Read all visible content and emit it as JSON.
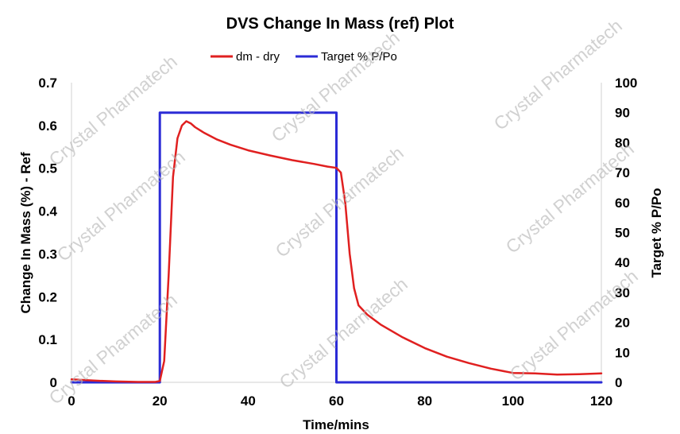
{
  "chart_data": {
    "type": "line",
    "title": "DVS Change In Mass (ref) Plot",
    "xlabel": "Time/mins",
    "ylabel_left": "Change In Mass (%) - Ref",
    "ylabel_right": "Target % P/Po",
    "xlim": [
      0,
      120
    ],
    "ylim_left": [
      0,
      0.7
    ],
    "ylim_right": [
      0,
      100
    ],
    "x_ticks": [
      "0",
      "20",
      "40",
      "60",
      "80",
      "100",
      "120"
    ],
    "y_left_ticks": [
      "0",
      "0.1",
      "0.2",
      "0.3",
      "0.4",
      "0.5",
      "0.6",
      "0.7"
    ],
    "y_right_ticks": [
      "0",
      "10",
      "20",
      "30",
      "40",
      "50",
      "60",
      "70",
      "80",
      "90",
      "100"
    ],
    "legend_position": "top",
    "watermark": "Crystal Pharmatech",
    "series": [
      {
        "name": "dm - dry",
        "color": "#e02020",
        "axis": "left",
        "points": [
          [
            0,
            0.007
          ],
          [
            5,
            0.004
          ],
          [
            10,
            0.002
          ],
          [
            15,
            0.001
          ],
          [
            19,
            0.001
          ],
          [
            20,
            0.003
          ],
          [
            21,
            0.05
          ],
          [
            22,
            0.25
          ],
          [
            23,
            0.48
          ],
          [
            24,
            0.57
          ],
          [
            25,
            0.6
          ],
          [
            26,
            0.61
          ],
          [
            27,
            0.605
          ],
          [
            28,
            0.596
          ],
          [
            30,
            0.583
          ],
          [
            33,
            0.567
          ],
          [
            36,
            0.555
          ],
          [
            40,
            0.542
          ],
          [
            45,
            0.53
          ],
          [
            50,
            0.519
          ],
          [
            55,
            0.51
          ],
          [
            58,
            0.504
          ],
          [
            60,
            0.501
          ],
          [
            61,
            0.49
          ],
          [
            62,
            0.42
          ],
          [
            63,
            0.3
          ],
          [
            64,
            0.22
          ],
          [
            65,
            0.18
          ],
          [
            67,
            0.158
          ],
          [
            70,
            0.135
          ],
          [
            75,
            0.105
          ],
          [
            80,
            0.08
          ],
          [
            85,
            0.06
          ],
          [
            90,
            0.045
          ],
          [
            95,
            0.032
          ],
          [
            100,
            0.022
          ],
          [
            105,
            0.021
          ],
          [
            110,
            0.018
          ],
          [
            115,
            0.019
          ],
          [
            120,
            0.021
          ]
        ]
      },
      {
        "name": "Target % P/Po",
        "color": "#2b2bd6",
        "axis": "right",
        "points": [
          [
            0,
            0
          ],
          [
            20,
            0
          ],
          [
            20,
            90
          ],
          [
            60,
            90
          ],
          [
            60,
            0
          ],
          [
            120,
            0
          ]
        ]
      }
    ]
  }
}
